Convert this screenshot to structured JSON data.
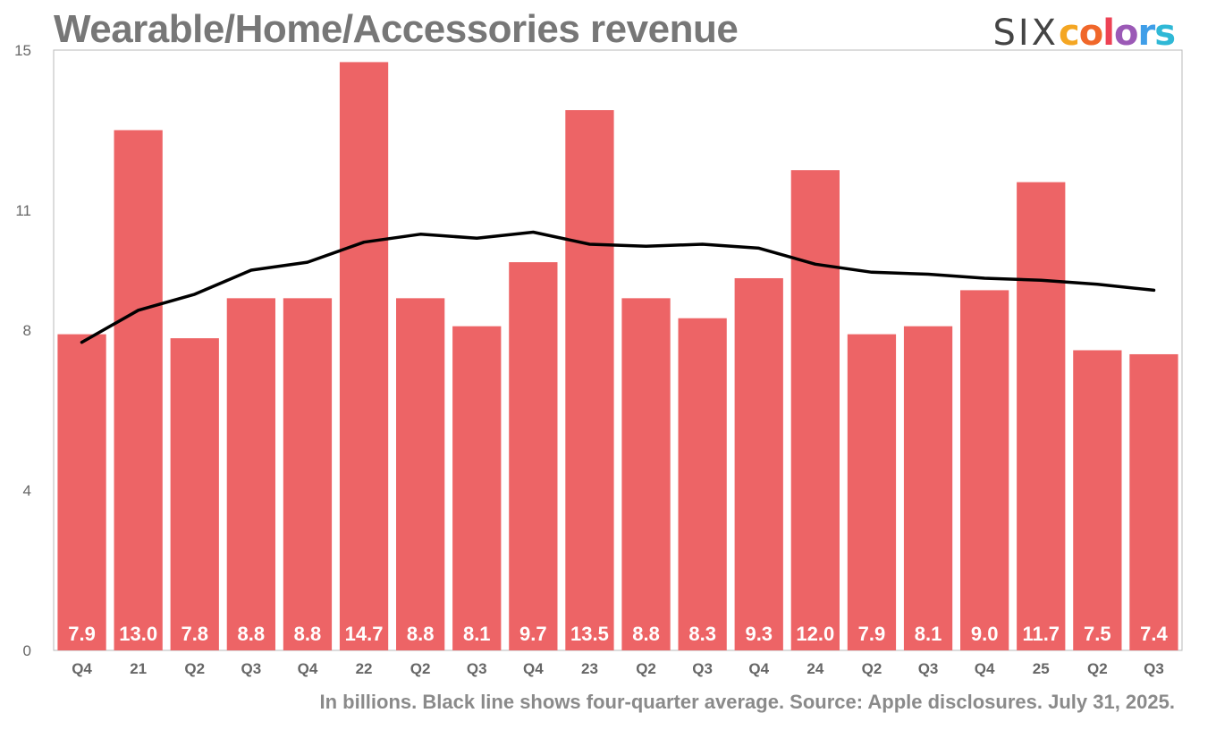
{
  "header": {
    "title": "Wearable/Home/Accessories revenue",
    "logo": {
      "prefix": "SIX",
      "suffix": "colors"
    }
  },
  "footer": {
    "note": "In billions. Black line shows four-quarter average. Source: Apple disclosures. July 31, 2025."
  },
  "colors": {
    "bar": "#ed6466",
    "line": "#000000",
    "logo_letters": [
      "#f4a623",
      "#f0672a",
      "#ed4254",
      "#9b59b6",
      "#3f9ee8",
      "#2fb8d6"
    ]
  },
  "chart_data": {
    "type": "bar",
    "title": "Wearable/Home/Accessories revenue",
    "categories": [
      "Q4",
      "21",
      "Q2",
      "Q3",
      "Q4",
      "22",
      "Q2",
      "Q3",
      "Q4",
      "23",
      "Q2",
      "Q3",
      "Q4",
      "24",
      "Q2",
      "Q3",
      "Q4",
      "25",
      "Q2",
      "Q3"
    ],
    "series": [
      {
        "type": "bar",
        "values": [
          7.9,
          13.0,
          7.8,
          8.8,
          8.8,
          14.7,
          8.8,
          8.1,
          9.7,
          13.5,
          8.8,
          8.3,
          9.3,
          12.0,
          7.9,
          8.1,
          9.0,
          11.7,
          7.5,
          7.4
        ],
        "labels": [
          "7.9",
          "13.0",
          "7.8",
          "8.8",
          "8.8",
          "14.7",
          "8.8",
          "8.1",
          "9.7",
          "13.5",
          "8.8",
          "8.3",
          "9.3",
          "12.0",
          "7.9",
          "8.1",
          "9.0",
          "11.7",
          "7.5",
          "7.4"
        ]
      },
      {
        "type": "line",
        "values": [
          7.7,
          8.5,
          8.9,
          9.5,
          9.7,
          10.2,
          10.4,
          10.3,
          10.45,
          10.15,
          10.1,
          10.15,
          10.05,
          9.65,
          9.45,
          9.4,
          9.3,
          9.25,
          9.15,
          9.0
        ]
      }
    ],
    "yticks": [
      {
        "value": 0,
        "label": "0"
      },
      {
        "value": 4,
        "label": "4"
      },
      {
        "value": 8,
        "label": "8"
      },
      {
        "value": 11,
        "label": "11"
      },
      {
        "value": 15,
        "label": "15"
      }
    ],
    "ylim": [
      0,
      15
    ],
    "grid": false,
    "legend": "none"
  }
}
